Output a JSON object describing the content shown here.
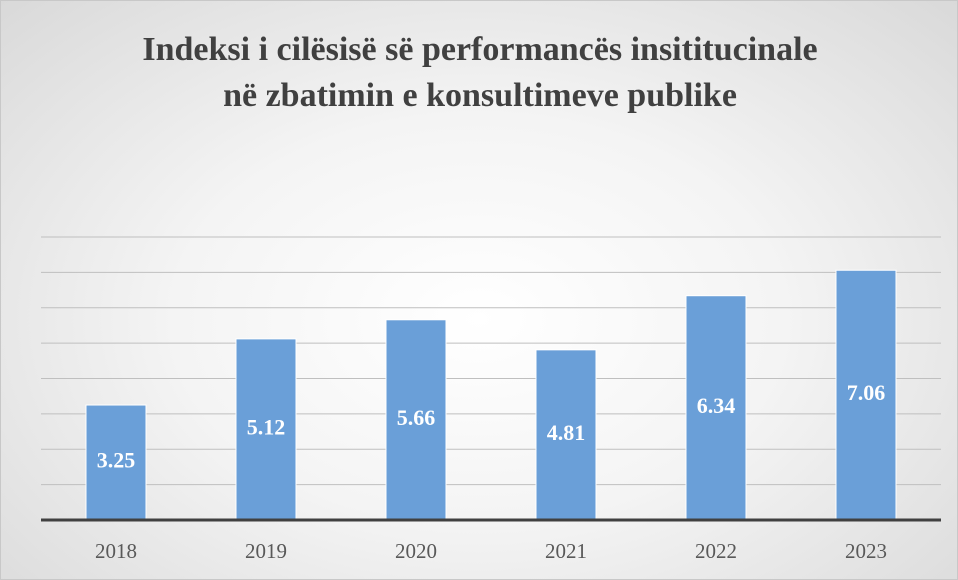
{
  "chart_data": {
    "type": "bar",
    "title": "Indeksi i cilësisë së performancës insititucinale në zbatimin e konsultimeve publike",
    "categories": [
      "2018",
      "2019",
      "2020",
      "2021",
      "2022",
      "2023"
    ],
    "values": [
      3.25,
      5.12,
      5.66,
      4.81,
      6.34,
      7.06
    ],
    "color": "#6a9fd8",
    "ylim": [
      0,
      8
    ],
    "yticks": [
      0,
      1,
      2,
      3,
      4,
      5,
      6,
      7,
      8
    ],
    "grid": true
  }
}
